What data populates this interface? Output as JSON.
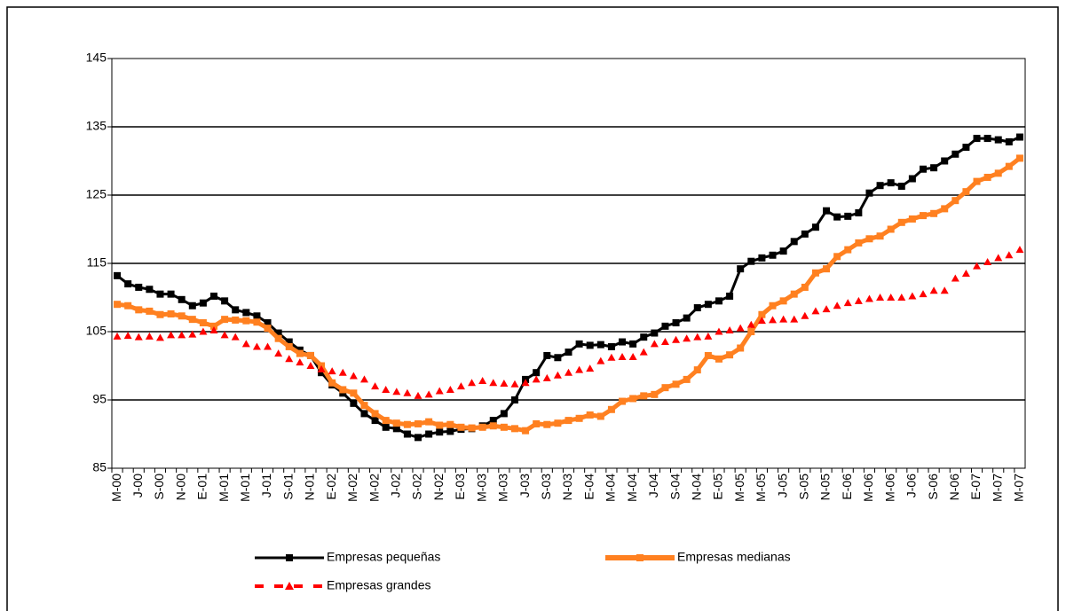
{
  "chart_data": {
    "type": "line",
    "categories": [
      "M-00",
      null,
      "J-00",
      null,
      "S-00",
      null,
      "N-00",
      null,
      "E-01",
      null,
      "M-01",
      null,
      "M-01",
      null,
      "J-01",
      null,
      "S-01",
      null,
      "N-01",
      null,
      "E-02",
      null,
      "M-02",
      null,
      "M-02",
      null,
      "J-02",
      null,
      "S-02",
      null,
      "N-02",
      null,
      "E-03",
      null,
      "M-03",
      null,
      "M-03",
      null,
      "J-03",
      null,
      "S-03",
      null,
      "N-03",
      null,
      "E-04",
      null,
      "M-04",
      null,
      "M-04",
      null,
      "J-04",
      null,
      "S-04",
      null,
      "N-04",
      null,
      "E-05",
      null,
      "M-05",
      null,
      "M-05",
      null,
      "J-05",
      null,
      "S-05",
      null,
      "N-05",
      null,
      "E-06",
      null,
      "M-06",
      null,
      "M-06",
      null,
      "J-06",
      null,
      "S-06",
      null,
      "N-06",
      null,
      "E-07",
      null,
      "M-07",
      null,
      "M-07"
    ],
    "series": [
      {
        "name": "Empresas pequeñas",
        "color": "#000000",
        "marker": "square",
        "values": [
          113.2,
          112,
          111.5,
          111.2,
          110.5,
          110.5,
          109.7,
          108.8,
          109.2,
          110.2,
          109.5,
          108.2,
          107.8,
          107.3,
          106.3,
          104.8,
          103.5,
          102.3,
          101.5,
          99,
          97.2,
          96,
          94.5,
          93,
          92,
          91,
          90.8,
          90,
          89.5,
          90,
          90.3,
          90.4,
          90.7,
          90.8,
          91.2,
          92,
          93,
          95,
          98,
          99,
          101.5,
          101.2,
          102,
          103.2,
          103,
          103.1,
          102.8,
          103.5,
          103.2,
          104.2,
          104.8,
          105.8,
          106.3,
          107,
          108.5,
          109,
          109.5,
          110.2,
          114.2,
          115.3,
          115.8,
          116.2,
          116.8,
          118.2,
          119.3,
          120.3,
          122.7,
          121.8,
          121.9,
          122.4,
          125.3,
          126.4,
          126.8,
          126.3,
          127.4,
          128.8,
          129,
          130,
          131,
          132,
          133.3,
          133.3,
          133.1,
          132.8,
          133.5
        ]
      },
      {
        "name": "Empresas medianas",
        "color": "#ff8020",
        "marker": "square",
        "values": [
          109,
          108.8,
          108.2,
          108,
          107.5,
          107.6,
          107.3,
          106.8,
          106.3,
          105.8,
          106.8,
          106.7,
          106.6,
          106.4,
          105.5,
          104,
          102.8,
          101.8,
          101.5,
          100,
          97.5,
          96.5,
          96,
          94.2,
          93,
          92,
          91.6,
          91.4,
          91.5,
          91.8,
          91.3,
          91.4,
          91,
          90.9,
          91,
          91.2,
          91,
          90.8,
          90.5,
          91.5,
          91.4,
          91.6,
          92,
          92.3,
          92.8,
          92.6,
          93.6,
          94.8,
          95.2,
          95.6,
          95.8,
          96.8,
          97.3,
          98,
          99.4,
          101.5,
          101,
          101.6,
          102.6,
          105,
          107.5,
          108.8,
          109.5,
          110.5,
          111.5,
          113.6,
          114.2,
          116,
          117,
          118,
          118.6,
          119,
          120,
          121,
          121.5,
          122,
          122.3,
          123,
          124.2,
          125.5,
          127,
          127.6,
          128.2,
          129.2,
          130.4
        ]
      },
      {
        "name": "Empresas grandes",
        "color": "#ff0000",
        "marker": "triangle",
        "dashed": true,
        "values": [
          104.3,
          104.4,
          104.2,
          104.3,
          104.1,
          104.5,
          104.5,
          104.6,
          105,
          105.2,
          104.5,
          104.2,
          103.2,
          102.8,
          102.8,
          101.8,
          101,
          100.5,
          100,
          99.5,
          99.2,
          99,
          98.5,
          98,
          97,
          96.5,
          96.2,
          96,
          95.6,
          95.8,
          96.3,
          96.5,
          97,
          97.5,
          97.8,
          97.5,
          97.4,
          97.3,
          97.5,
          98,
          98.2,
          98.6,
          99,
          99.4,
          99.6,
          100.7,
          101.2,
          101.3,
          101.3,
          102,
          103.2,
          103.5,
          103.8,
          104,
          104.2,
          104.3,
          105,
          105.2,
          105.5,
          106,
          106.6,
          106.7,
          106.8,
          106.8,
          107.3,
          108,
          108.3,
          108.8,
          109.2,
          109.5,
          109.8,
          110,
          110,
          110,
          110.2,
          110.5,
          111,
          111,
          112.8,
          113.5,
          114.6,
          115.2,
          115.8,
          116.2,
          117
        ]
      }
    ],
    "ylim": [
      85,
      145
    ],
    "yticks": [
      85,
      95,
      105,
      115,
      125,
      135,
      145
    ],
    "grid": true,
    "legend": "bottom"
  }
}
